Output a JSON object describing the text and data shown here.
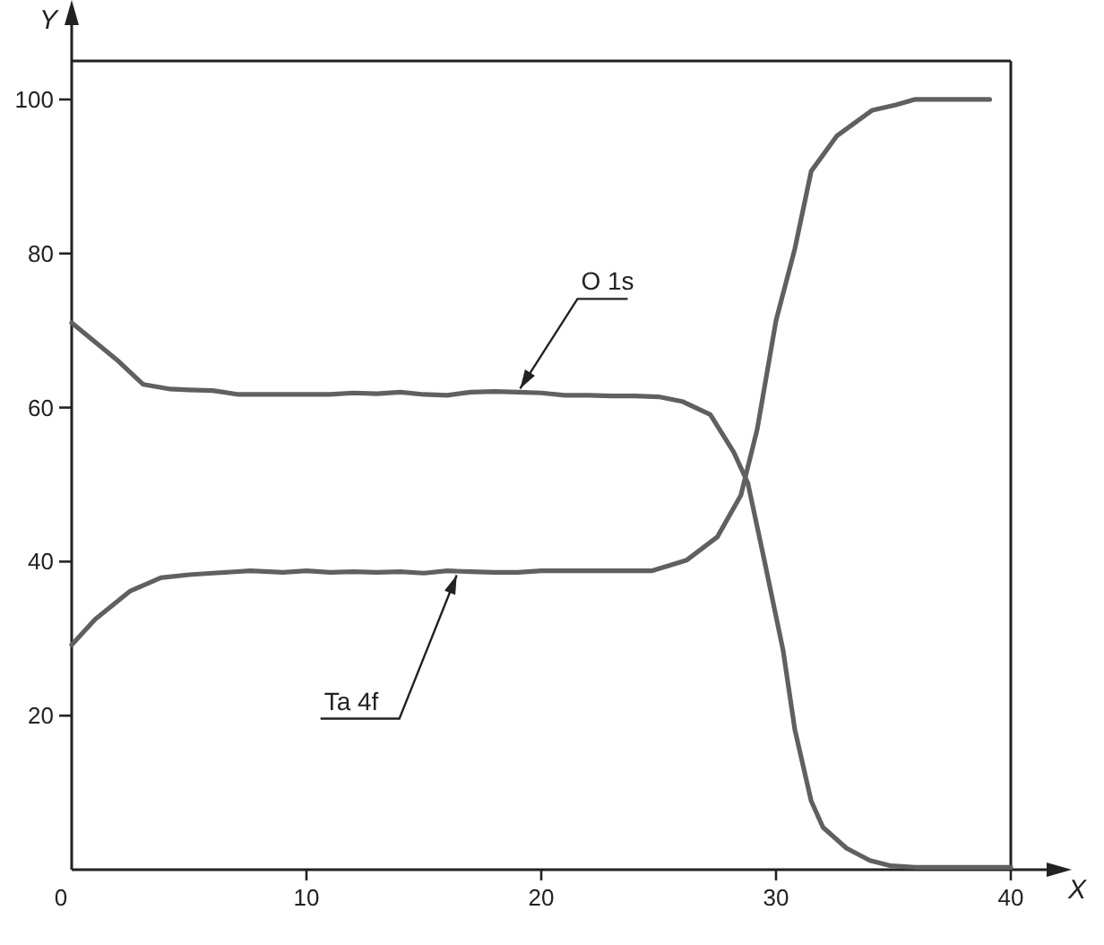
{
  "chart_data": {
    "type": "line",
    "xlabel": "X",
    "ylabel": "Y",
    "xlim": [
      0,
      40
    ],
    "ylim": [
      0,
      105
    ],
    "xticks": [
      0,
      10,
      20,
      30,
      40
    ],
    "yticks": [
      {
        "value": 0,
        "label": null
      },
      20,
      40,
      60,
      80,
      100
    ],
    "marker": "none",
    "line_style": "solid",
    "series": [
      {
        "color": "#606060",
        "x": [
          0,
          1,
          2,
          3.05,
          4.2,
          5,
          6,
          7.1,
          8,
          9,
          10,
          11,
          12,
          13,
          14,
          15,
          16,
          17,
          18,
          19,
          20,
          21,
          22,
          23,
          24,
          25,
          26,
          27.2,
          28.2,
          28.8,
          29.5,
          30.3,
          30.8,
          31.5,
          32,
          33,
          34,
          34.9,
          36,
          38,
          40
        ],
        "values": [
          71,
          68.5,
          66,
          63,
          62.4,
          62.3,
          62.2,
          61.7,
          61.7,
          61.7,
          61.7,
          61.7,
          61.9,
          61.8,
          62,
          61.7,
          61.6,
          62,
          62.1,
          62,
          61.9,
          61.6,
          61.6,
          61.5,
          61.5,
          61.4,
          60.8,
          59.1,
          54.2,
          50.2,
          40.2,
          28.5,
          18.2,
          8.9,
          5.5,
          2.8,
          1.2,
          0.5,
          0.3,
          0.3,
          0.3
        ]
      },
      {
        "color": "#606060",
        "x": [
          0,
          1,
          2.5,
          3.8,
          5,
          6,
          7.6,
          9,
          10,
          11,
          12,
          13,
          14,
          15,
          16,
          17,
          18,
          19,
          20,
          21,
          22,
          23,
          24,
          24.7,
          26.2,
          27.5,
          28.5,
          29.2,
          30,
          30.8,
          31.5,
          32.6,
          34.1,
          35.1,
          35.9,
          37,
          39.1
        ],
        "values": [
          29.2,
          32.5,
          36.2,
          37.9,
          38.3,
          38.5,
          38.8,
          38.6,
          38.8,
          38.6,
          38.7,
          38.6,
          38.7,
          38.5,
          38.8,
          38.7,
          38.6,
          38.6,
          38.8,
          38.8,
          38.8,
          38.8,
          38.8,
          38.8,
          40.2,
          43.2,
          48.6,
          57.2,
          71.3,
          80.6,
          90.7,
          95.3,
          98.6,
          99.3,
          100,
          100,
          100
        ]
      }
    ],
    "annotations": [
      {
        "text": "O 1s",
        "x": 19.1,
        "y": 62
      },
      {
        "text": "Ta 4f",
        "x": 16.4,
        "y": 38.7
      }
    ]
  }
}
